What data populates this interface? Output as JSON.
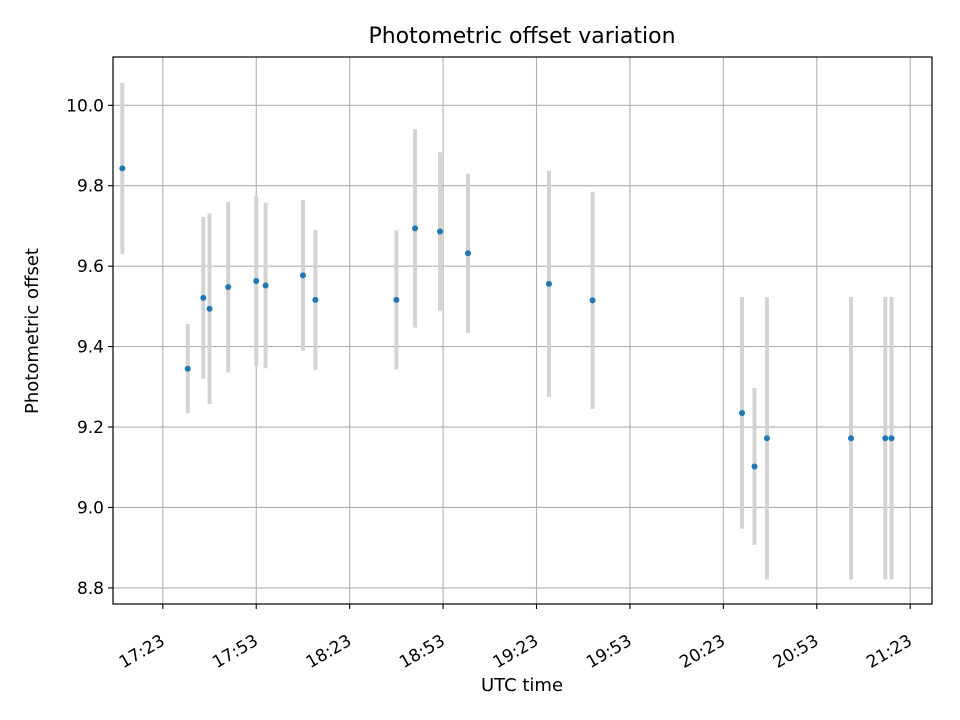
{
  "chart_data": {
    "type": "scatter",
    "title": "Photometric offset variation",
    "xlabel": "UTC time",
    "ylabel": "Photometric offset",
    "x_tick_labels": [
      "17:23",
      "17:53",
      "18:23",
      "18:53",
      "19:23",
      "19:53",
      "20:23",
      "20:53",
      "21:23"
    ],
    "y_tick_labels": [
      "8.8",
      "9.0",
      "9.2",
      "9.4",
      "9.6",
      "9.8",
      "10.0"
    ],
    "y_ticks": [
      8.8,
      9.0,
      9.2,
      9.4,
      9.6,
      9.8,
      10.0
    ],
    "ylim": [
      8.76,
      10.12
    ],
    "xlim": [
      "17:07",
      "21:30"
    ],
    "grid": true,
    "marker_color": "#1f77b4",
    "errorbar_color": "#d3d3d3",
    "points": [
      {
        "x": "17:10",
        "y": 9.843,
        "err": 0.213
      },
      {
        "x": "17:31",
        "y": 9.345,
        "err": 0.111
      },
      {
        "x": "17:36",
        "y": 9.521,
        "err": 0.201
      },
      {
        "x": "17:38",
        "y": 9.494,
        "err": 0.237
      },
      {
        "x": "17:44",
        "y": 9.548,
        "err": 0.212
      },
      {
        "x": "17:53",
        "y": 9.563,
        "err": 0.212
      },
      {
        "x": "17:56",
        "y": 9.552,
        "err": 0.206
      },
      {
        "x": "18:08",
        "y": 9.577,
        "err": 0.187
      },
      {
        "x": "18:12",
        "y": 9.516,
        "err": 0.174
      },
      {
        "x": "18:38",
        "y": 9.516,
        "err": 0.173
      },
      {
        "x": "18:44",
        "y": 9.694,
        "err": 0.247
      },
      {
        "x": "18:52",
        "y": 9.686,
        "err": 0.197
      },
      {
        "x": "19:01",
        "y": 9.632,
        "err": 0.198
      },
      {
        "x": "19:27",
        "y": 9.556,
        "err": 0.281
      },
      {
        "x": "19:41",
        "y": 9.515,
        "err": 0.27
      },
      {
        "x": "20:29",
        "y": 9.235,
        "err": 0.288
      },
      {
        "x": "20:33",
        "y": 9.102,
        "err": 0.195
      },
      {
        "x": "20:37",
        "y": 9.172,
        "err": 0.351
      },
      {
        "x": "21:04",
        "y": 9.172,
        "err": 0.351
      },
      {
        "x": "21:15",
        "y": 9.172,
        "err": 0.351
      },
      {
        "x": "21:17",
        "y": 9.172,
        "err": 0.351
      }
    ]
  }
}
